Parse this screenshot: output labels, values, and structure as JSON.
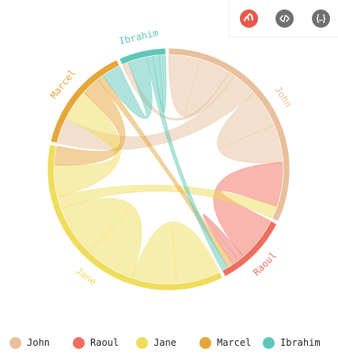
{
  "toolbar": {
    "buttons": [
      {
        "name": "logo-button",
        "icon": "amcharts-logo-icon",
        "color": "#e8584a"
      },
      {
        "name": "source-button",
        "icon": "code-icon",
        "color": "#707070"
      },
      {
        "name": "data-button",
        "icon": "json-braces-icon",
        "color": "#707070"
      }
    ]
  },
  "chart_data": {
    "type": "chord",
    "title": "",
    "nodes": [
      {
        "name": "John",
        "color": "#e8c09c"
      },
      {
        "name": "Raoul",
        "color": "#ef6f5f"
      },
      {
        "name": "Jane",
        "color": "#efdc5a"
      },
      {
        "name": "Marcel",
        "color": "#e5a63a"
      },
      {
        "name": "Ibrahim",
        "color": "#5ec8b8"
      }
    ],
    "links": [
      {
        "from": "John",
        "to": "John",
        "value": 5
      },
      {
        "from": "John",
        "to": "Ibrahim",
        "value": 1
      },
      {
        "from": "John",
        "to": "Marcel",
        "value": 4
      },
      {
        "from": "John",
        "to": "John",
        "value": 6
      },
      {
        "from": "Raoul",
        "to": "John",
        "value": 7
      },
      {
        "from": "Raoul",
        "to": "Raoul",
        "value": 1
      },
      {
        "from": "Jane",
        "to": "Jane",
        "value": 7
      },
      {
        "from": "Jane",
        "to": "Jane",
        "value": 8
      },
      {
        "from": "Jane",
        "to": "John",
        "value": 2
      },
      {
        "from": "Jane",
        "to": "Marcel",
        "value": 5
      },
      {
        "from": "Marcel",
        "to": "Jane",
        "value": 3
      },
      {
        "from": "Marcel",
        "to": "Raoul",
        "value": 1
      },
      {
        "from": "Ibrahim",
        "to": "Marcel",
        "value": 3
      },
      {
        "from": "Ibrahim",
        "to": "Raoul",
        "value": 1
      },
      {
        "from": "Ibrahim",
        "to": "Ibrahim",
        "value": 1
      }
    ],
    "legend": {
      "position": "bottom",
      "items": [
        "John",
        "Raoul",
        "Jane",
        "Marcel",
        "Ibrahim"
      ]
    }
  }
}
